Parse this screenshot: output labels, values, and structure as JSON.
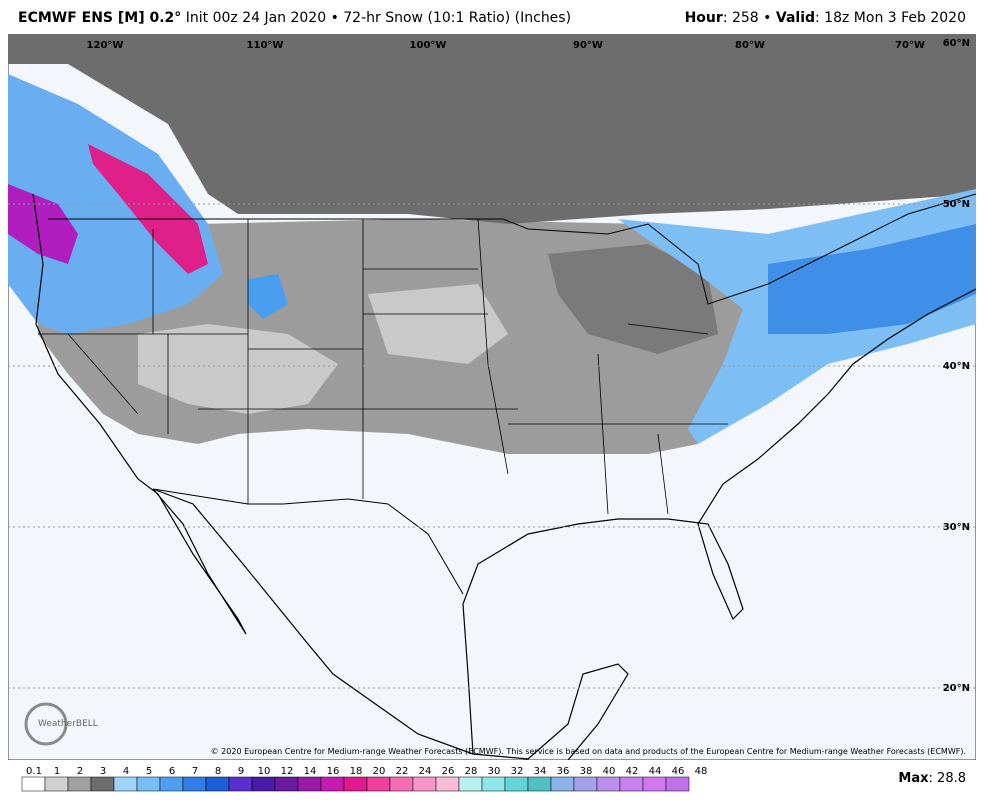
{
  "header": {
    "model": "ECMWF ENS [M] 0.2°",
    "init": " Init 00z 24 Jan 2020 • 72-hr Snow (10:1 Ratio) (Inches)",
    "hour_label": "Hour",
    "hour_value": ": 258",
    "separator": "•",
    "valid_label": "Valid",
    "valid_value": ": 18z Mon 3 Feb 2020"
  },
  "longitudes": [
    "120°W",
    "110°W",
    "100°W",
    "90°W",
    "80°W",
    "70°W"
  ],
  "latitudes": [
    "60°N",
    "50°N",
    "40°N",
    "30°N",
    "20°N"
  ],
  "logo": "WeatherBELL",
  "copyright": "© 2020 European Centre for Medium-range Weather Forecasts (ECMWF). This service is based on data and products of the European Centre for Medium-range Weather Forecasts (ECMWF).",
  "legend": {
    "levels": [
      "0.1",
      "1",
      "2",
      "3",
      "4",
      "5",
      "6",
      "7",
      "8",
      "9",
      "10",
      "12",
      "14",
      "16",
      "18",
      "20",
      "22",
      "24",
      "26",
      "28",
      "30",
      "32",
      "34",
      "36",
      "38",
      "40",
      "42",
      "44",
      "46",
      "48"
    ],
    "colors": [
      "#ffffff",
      "#d0d0d0",
      "#a0a0a0",
      "#6e6e6e",
      "#9fd3fb",
      "#79bdf6",
      "#4e9ff0",
      "#2f7fe6",
      "#1c5fd8",
      "#5a2fd0",
      "#4a1aa8",
      "#6a1aa0",
      "#9a1aa8",
      "#c81ab0",
      "#e01a8e",
      "#f0409c",
      "#f46cb2",
      "#f696c8",
      "#f8bcd8",
      "#b8f0f0",
      "#8ee6e8",
      "#62d4d8",
      "#4ec0c4",
      "#8ab4e8",
      "#a6a0ec",
      "#b890ee",
      "#c882f0",
      "#d476f0",
      "#c070e8"
    ]
  },
  "max": {
    "label": "Max",
    "value": ": 28.8"
  }
}
